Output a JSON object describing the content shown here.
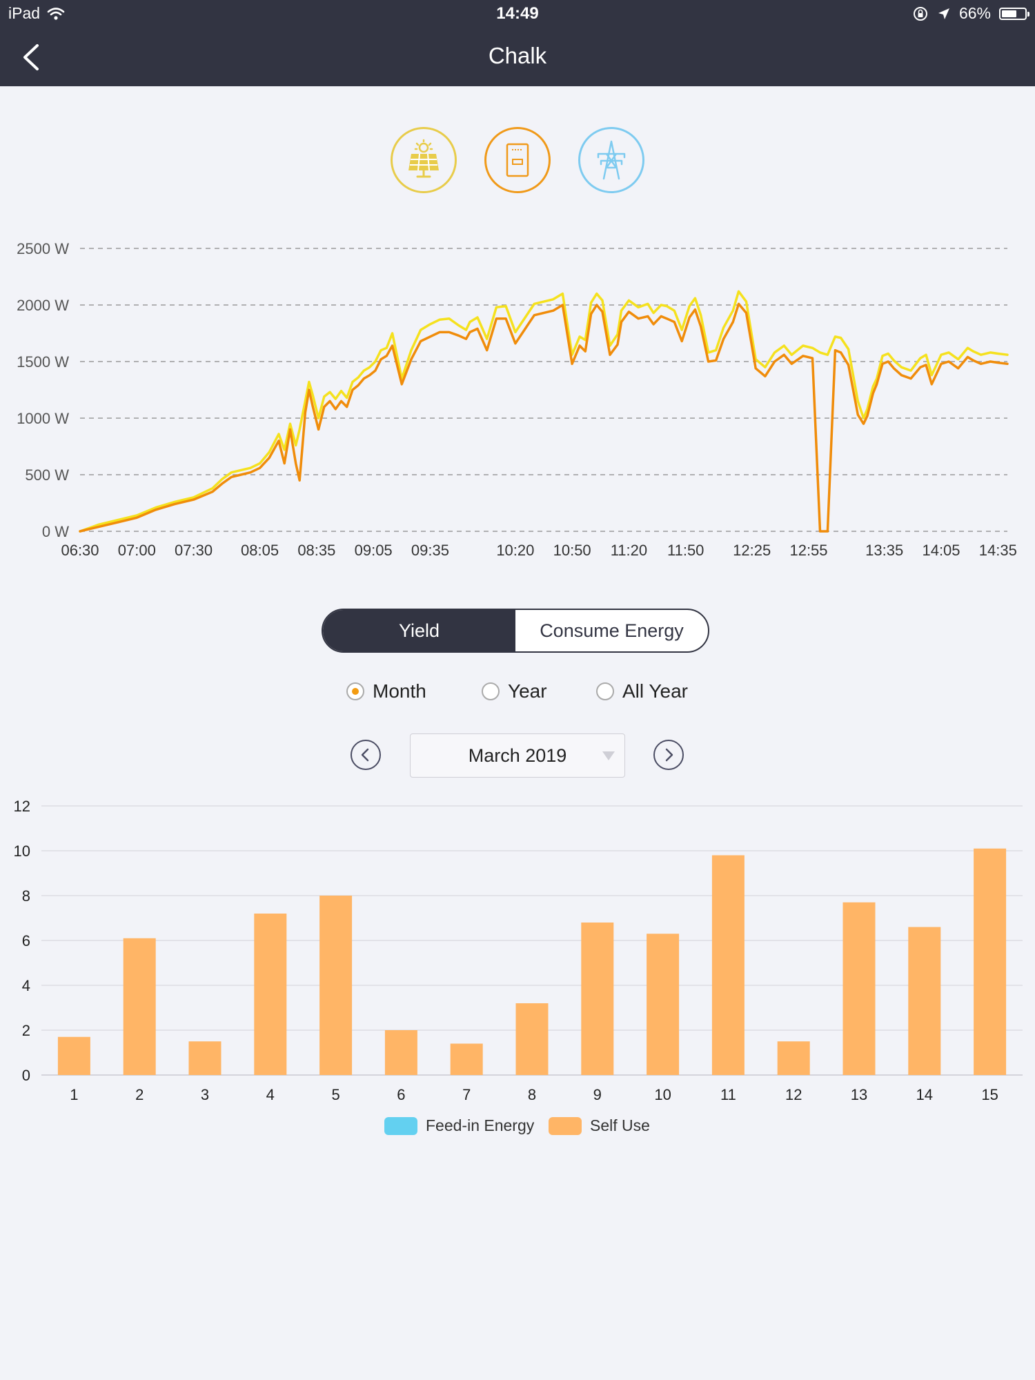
{
  "status_bar": {
    "device": "iPad",
    "time": "14:49",
    "battery_text": "66%",
    "battery_level": 0.66
  },
  "nav": {
    "title": "Chalk"
  },
  "device_icons": [
    {
      "name": "solar-panel-icon",
      "color": "#e8cc4a"
    },
    {
      "name": "inverter-icon",
      "color": "#f09a1a"
    },
    {
      "name": "grid-tower-icon",
      "color": "#7ecbf0"
    }
  ],
  "colors": {
    "dark": "#323442",
    "yield_line": "#f5e11e",
    "power_line": "#f08c0a",
    "self_use": "#ffb566",
    "feed_in": "#63d0f0",
    "grid_dash": "#9a9a9a"
  },
  "segment": {
    "options": [
      "Yield",
      "Consume Energy"
    ],
    "active": 0
  },
  "period": {
    "options": [
      "Month",
      "Year",
      "All Year"
    ],
    "selected": 0
  },
  "date_picker": {
    "value": "March 2019"
  },
  "chart_data": [
    {
      "type": "line",
      "y_unit": "W",
      "ylim": [
        0,
        2500
      ],
      "y_ticks": [
        "0 W",
        "500 W",
        "1000 W",
        "1500 W",
        "2000 W",
        "2500 W"
      ],
      "x_ticks": [
        "06:30",
        "07:00",
        "07:30",
        "08:05",
        "08:35",
        "09:05",
        "09:35",
        "10:20",
        "10:50",
        "11:20",
        "11:50",
        "12:25",
        "12:55",
        "13:35",
        "14:05",
        "14:35"
      ],
      "x_range": [
        "06:30",
        "14:40"
      ],
      "grid": "dashed horizontal",
      "series": [
        {
          "color": "#f5e11e",
          "x": [
            "06:30",
            "06:40",
            "06:50",
            "07:00",
            "07:10",
            "07:20",
            "07:30",
            "07:40",
            "07:45",
            "07:50",
            "07:55",
            "08:00",
            "08:05",
            "08:10",
            "08:15",
            "08:18",
            "08:21",
            "08:24",
            "08:26",
            "08:29",
            "08:31",
            "08:33",
            "08:36",
            "08:39",
            "08:42",
            "08:45",
            "08:48",
            "08:51",
            "08:54",
            "08:57",
            "09:00",
            "09:03",
            "09:06",
            "09:09",
            "09:12",
            "09:15",
            "09:20",
            "09:25",
            "09:30",
            "09:35",
            "09:40",
            "09:45",
            "09:50",
            "09:54",
            "09:56",
            "10:00",
            "10:05",
            "10:10",
            "10:15",
            "10:20",
            "10:30",
            "10:40",
            "10:45",
            "10:50",
            "10:54",
            "10:57",
            "11:00",
            "11:03",
            "11:06",
            "11:10",
            "11:14",
            "11:16",
            "11:20",
            "11:25",
            "11:30",
            "11:33",
            "11:37",
            "11:40",
            "11:44",
            "11:48",
            "11:52",
            "11:55",
            "11:58",
            "12:02",
            "12:06",
            "12:10",
            "12:15",
            "12:18",
            "12:22",
            "12:27",
            "12:32",
            "12:37",
            "12:42",
            "12:46",
            "12:52",
            "12:57",
            "13:01",
            "13:05",
            "13:09",
            "13:12",
            "13:16",
            "13:21",
            "13:24",
            "13:26",
            "13:29",
            "13:31",
            "13:34",
            "13:37",
            "13:40",
            "13:44",
            "13:49",
            "13:54",
            "13:57",
            "14:00",
            "14:05",
            "14:09",
            "14:14",
            "14:19",
            "14:22",
            "14:26",
            "14:31",
            "14:35",
            "14:40"
          ],
          "y": [
            0,
            60,
            100,
            140,
            210,
            260,
            300,
            380,
            460,
            520,
            540,
            560,
            600,
            700,
            860,
            720,
            950,
            760,
            900,
            1150,
            1320,
            1200,
            1000,
            1190,
            1230,
            1170,
            1240,
            1180,
            1320,
            1360,
            1420,
            1450,
            1500,
            1600,
            1620,
            1750,
            1350,
            1600,
            1780,
            1830,
            1870,
            1880,
            1820,
            1780,
            1850,
            1890,
            1700,
            1980,
            1990,
            1760,
            2010,
            2050,
            2100,
            1560,
            1720,
            1690,
            2020,
            2100,
            2040,
            1640,
            1740,
            1950,
            2040,
            1980,
            2010,
            1930,
            2000,
            1990,
            1950,
            1780,
            1990,
            2060,
            1910,
            1580,
            1600,
            1800,
            1950,
            2120,
            2030,
            1520,
            1450,
            1580,
            1640,
            1560,
            1640,
            1620,
            1580,
            1560,
            1720,
            1710,
            1610,
            1150,
            1000,
            1080,
            1280,
            1350,
            1550,
            1570,
            1510,
            1450,
            1420,
            1530,
            1560,
            1380,
            1560,
            1580,
            1520,
            1620,
            1590,
            1560,
            1580,
            1570,
            1560
          ]
        },
        {
          "color": "#f08c0a",
          "x": [
            "06:30",
            "06:40",
            "06:50",
            "07:00",
            "07:10",
            "07:20",
            "07:30",
            "07:40",
            "07:45",
            "07:50",
            "07:55",
            "08:00",
            "08:05",
            "08:10",
            "08:15",
            "08:18",
            "08:21",
            "08:24",
            "08:26",
            "08:29",
            "08:31",
            "08:33",
            "08:36",
            "08:39",
            "08:42",
            "08:45",
            "08:48",
            "08:51",
            "08:54",
            "08:57",
            "09:00",
            "09:03",
            "09:06",
            "09:09",
            "09:12",
            "09:15",
            "09:20",
            "09:25",
            "09:30",
            "09:35",
            "09:40",
            "09:45",
            "09:50",
            "09:54",
            "09:56",
            "10:00",
            "10:05",
            "10:10",
            "10:15",
            "10:20",
            "10:30",
            "10:40",
            "10:45",
            "10:50",
            "10:54",
            "10:57",
            "11:00",
            "11:03",
            "11:06",
            "11:10",
            "11:14",
            "11:16",
            "11:20",
            "11:25",
            "11:30",
            "11:33",
            "11:37",
            "11:40",
            "11:44",
            "11:48",
            "11:52",
            "11:55",
            "11:58",
            "12:02",
            "12:06",
            "12:10",
            "12:15",
            "12:18",
            "12:22",
            "12:27",
            "12:32",
            "12:37",
            "12:42",
            "12:46",
            "12:52",
            "12:57",
            "13:01",
            "13:05",
            "13:09",
            "13:12",
            "13:16",
            "13:21",
            "13:24",
            "13:26",
            "13:29",
            "13:31",
            "13:34",
            "13:37",
            "13:40",
            "13:44",
            "13:49",
            "13:54",
            "13:57",
            "14:00",
            "14:05",
            "14:09",
            "14:14",
            "14:19",
            "14:22",
            "14:26",
            "14:31",
            "14:35",
            "14:40"
          ],
          "y": [
            0,
            40,
            80,
            120,
            190,
            240,
            280,
            350,
            420,
            480,
            500,
            520,
            560,
            650,
            800,
            600,
            900,
            600,
            450,
            1050,
            1250,
            1100,
            900,
            1100,
            1150,
            1080,
            1150,
            1100,
            1250,
            1290,
            1350,
            1380,
            1420,
            1520,
            1550,
            1640,
            1300,
            1520,
            1680,
            1720,
            1760,
            1760,
            1730,
            1700,
            1760,
            1790,
            1600,
            1880,
            1880,
            1660,
            1910,
            1950,
            2000,
            1480,
            1640,
            1590,
            1920,
            2000,
            1940,
            1560,
            1650,
            1850,
            1940,
            1880,
            1900,
            1830,
            1900,
            1880,
            1850,
            1680,
            1890,
            1960,
            1810,
            1500,
            1510,
            1700,
            1850,
            2010,
            1930,
            1440,
            1370,
            1500,
            1560,
            1480,
            1550,
            1530,
            0,
            0,
            1600,
            1580,
            1470,
            1030,
            950,
            1020,
            1220,
            1300,
            1480,
            1500,
            1440,
            1380,
            1350,
            1450,
            1470,
            1300,
            1480,
            1500,
            1440,
            1540,
            1510,
            1480,
            1500,
            1490,
            1480
          ]
        }
      ]
    },
    {
      "type": "bar",
      "categories": [
        "1",
        "2",
        "3",
        "4",
        "5",
        "6",
        "7",
        "8",
        "9",
        "10",
        "11",
        "12",
        "13",
        "14",
        "15"
      ],
      "ylim": [
        0,
        12
      ],
      "y_ticks": [
        "0",
        "2",
        "4",
        "6",
        "8",
        "10",
        "12"
      ],
      "grid": "solid horizontal",
      "legend_position": "bottom-center",
      "series": [
        {
          "name": "Feed-in Energy",
          "color": "#63d0f0",
          "values": [
            0,
            0,
            0,
            0,
            0,
            0,
            0,
            0,
            0,
            0,
            0,
            0,
            0,
            0,
            0
          ]
        },
        {
          "name": "Self Use",
          "color": "#ffb566",
          "values": [
            1.7,
            6.1,
            1.5,
            7.2,
            8.0,
            2.0,
            1.4,
            3.2,
            6.8,
            6.3,
            9.8,
            1.5,
            7.7,
            6.6,
            10.1
          ]
        }
      ]
    }
  ]
}
